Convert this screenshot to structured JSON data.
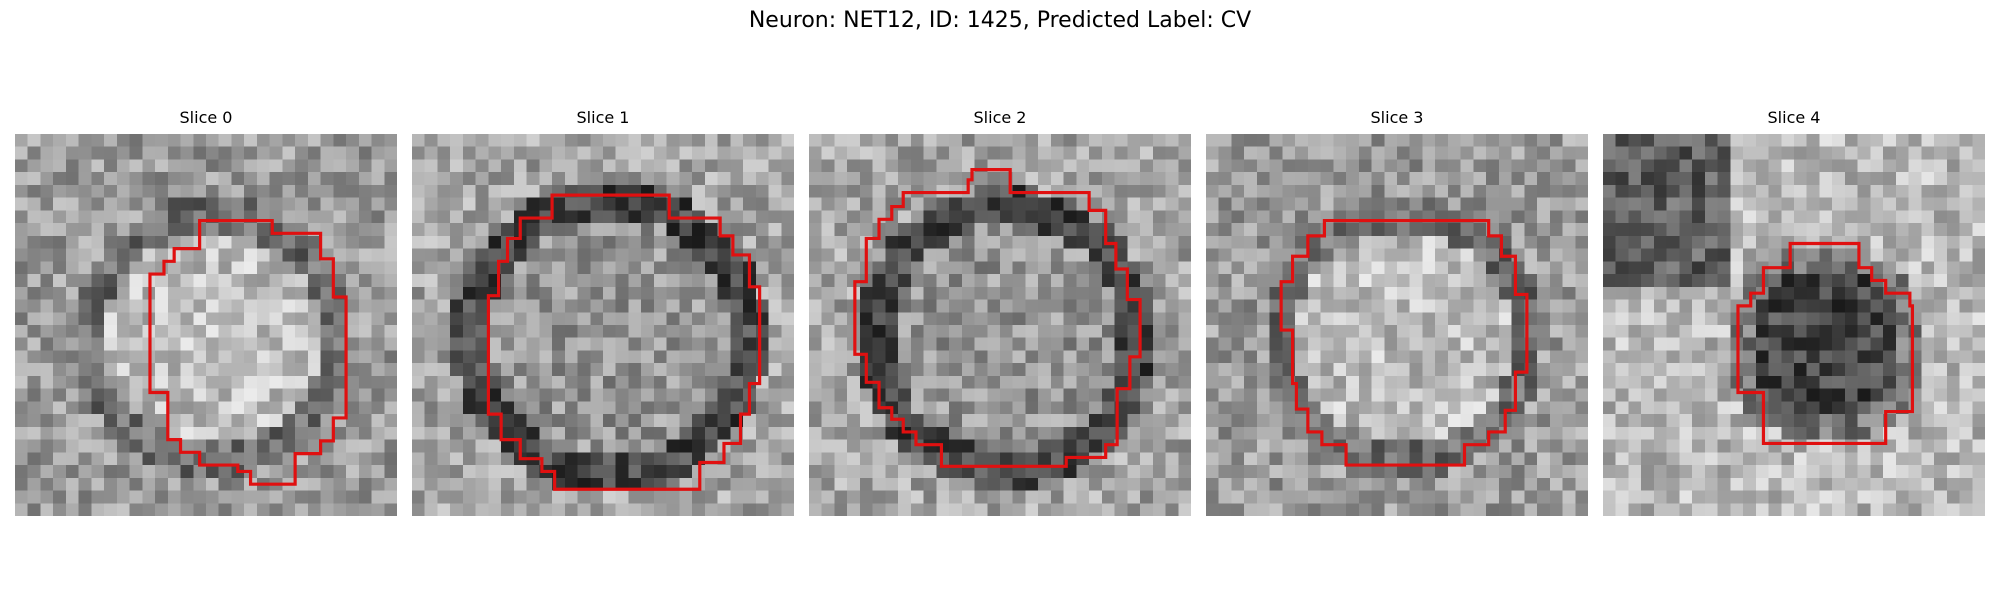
{
  "figure": {
    "title": "Neuron: NET12, ID: 1425, Predicted Label: CV",
    "panels": [
      {
        "title": "Slice 0",
        "style": "bright-core"
      },
      {
        "title": "Slice 1",
        "style": "dark-ring"
      },
      {
        "title": "Slice 2",
        "style": "dark-ring"
      },
      {
        "title": "Slice 3",
        "style": "bright-core"
      },
      {
        "title": "Slice 4",
        "style": "dark-core"
      }
    ],
    "outline_color": "#e01010",
    "colormap": "grayscale"
  }
}
